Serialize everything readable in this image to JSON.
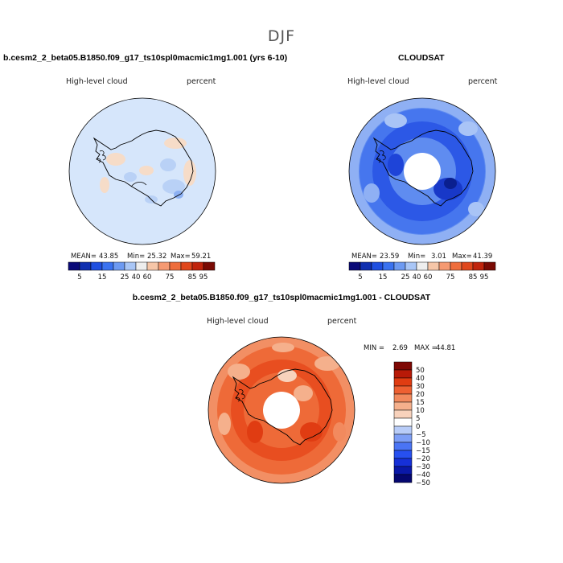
{
  "main_title": "DJF",
  "colors": {
    "abs_scale": [
      "#0a0a78",
      "#0f2fb0",
      "#1f4fe0",
      "#3a72f0",
      "#6d9af2",
      "#a9c6f6",
      "#eeeeee",
      "#f6c6a8",
      "#f59a72",
      "#ee6d3c",
      "#e0471c",
      "#c0240c",
      "#7a0a04"
    ],
    "diff_scale": [
      "#050770",
      "#0a18a8",
      "#1630d8",
      "#2750f0",
      "#4a74f4",
      "#7d9ef6",
      "#b8ccf8",
      "#ffffff",
      "#f8d2bc",
      "#f5b08c",
      "#f28a5e",
      "#ee6032",
      "#e03c12",
      "#b81a08",
      "#7e0804"
    ],
    "coast": "#000000"
  },
  "chart_data": [
    {
      "type": "heatmap",
      "title": "b.cesm2_2_beta05.B1850.f09_g17_ts10spl0macmic1mg1.001 (yrs 6-10)",
      "variable_label": "High-level cloud",
      "units_label": "percent",
      "projection": "south-polar-stereographic",
      "stats": {
        "mean_label": "MEAN=",
        "mean": "43.85",
        "min_label": "Min=",
        "min": "25.32",
        "max_label": "Max=",
        "max": "59.21"
      },
      "colorbar_ticks": [
        "5",
        "15",
        "25",
        "40",
        "60",
        "75",
        "85",
        "95"
      ],
      "levels": [
        5,
        10,
        15,
        20,
        25,
        30,
        40,
        50,
        60,
        70,
        75,
        80,
        85,
        90,
        95
      ],
      "dominant_value": 45
    },
    {
      "type": "heatmap",
      "title": "CLOUDSAT",
      "variable_label": "High-level cloud",
      "units_label": "percent",
      "projection": "south-polar-stereographic",
      "stats": {
        "mean_label": "MEAN=",
        "mean": "23.59",
        "min_label": "Min=",
        "min": "3.01",
        "max_label": "Max=",
        "max": "41.39"
      },
      "colorbar_ticks": [
        "5",
        "15",
        "25",
        "40",
        "60",
        "75",
        "85",
        "95"
      ],
      "levels": [
        5,
        10,
        15,
        20,
        25,
        30,
        40,
        50,
        60,
        70,
        75,
        80,
        85,
        90,
        95
      ],
      "dominant_value": 22
    },
    {
      "type": "heatmap",
      "title": "b.cesm2_2_beta05.B1850.f09_g17_ts10spl0macmic1mg1.001 - CLOUDSAT",
      "variable_label": "High-level cloud",
      "units_label": "percent",
      "projection": "south-polar-stereographic",
      "stats": {
        "min_label": "MIN =",
        "min": "2.69",
        "max_label": "MAX =",
        "max": "44.81"
      },
      "colorbar_levels": [
        "50",
        "40",
        "30",
        "20",
        "15",
        "10",
        "5",
        "0",
        "−5",
        "−10",
        "−15",
        "−20",
        "−30",
        "−40",
        "−50"
      ],
      "dominant_value": 22
    }
  ]
}
